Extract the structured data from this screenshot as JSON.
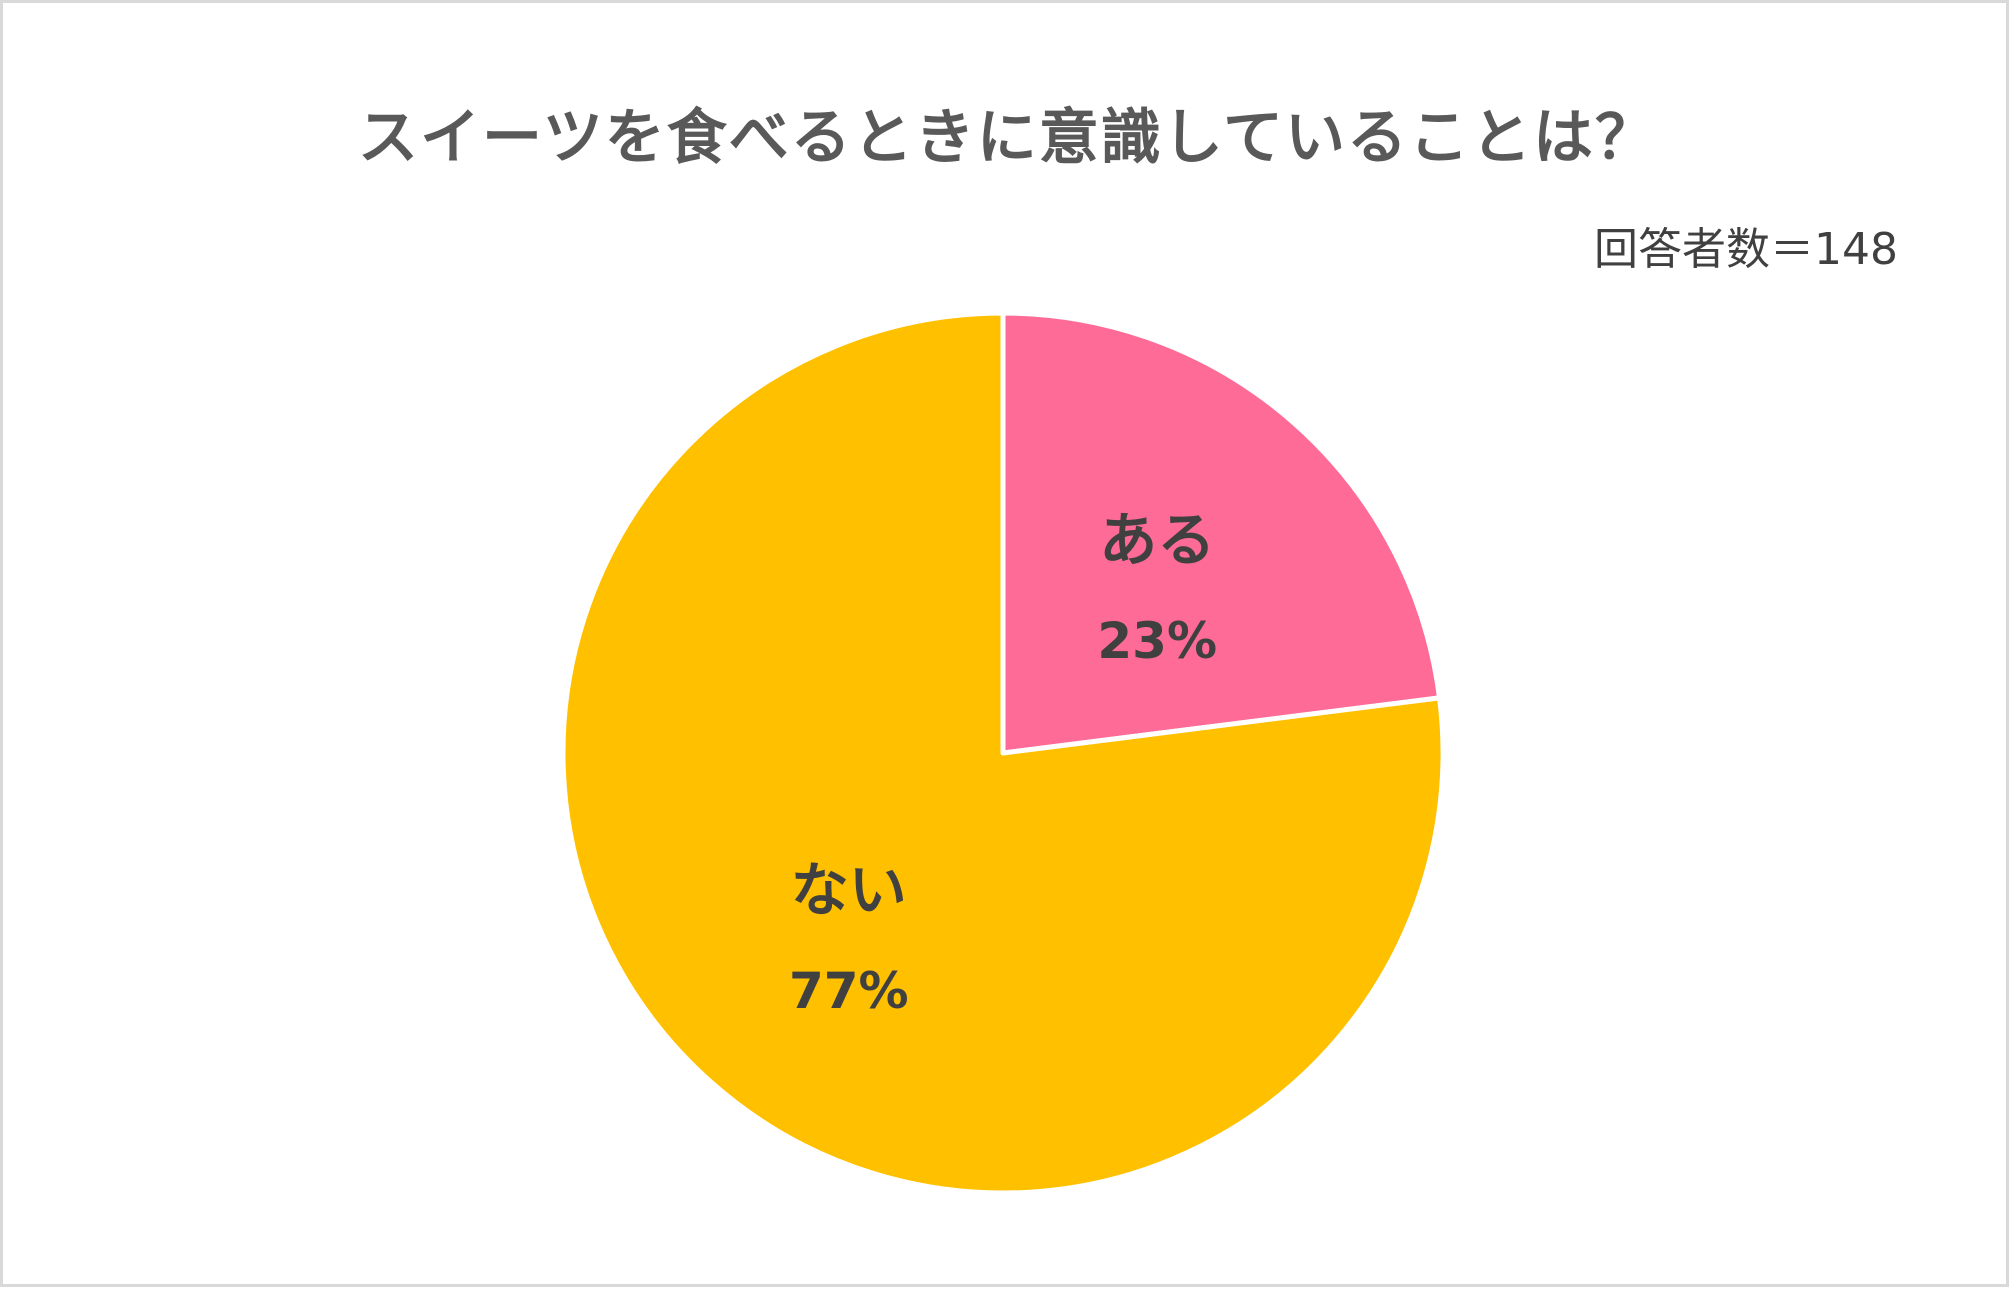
{
  "chart_data": {
    "type": "pie",
    "title": "スイーツを食べるときに意識していることは？",
    "note": "回答者数＝148",
    "start_angle_deg": 0,
    "direction": "clockwise",
    "slices": [
      {
        "label": "ある",
        "value": 23,
        "value_label": "23%",
        "color": "#FF6B97"
      },
      {
        "label": "ない",
        "value": 77,
        "value_label": "77%",
        "color": "#FFC000"
      }
    ]
  }
}
